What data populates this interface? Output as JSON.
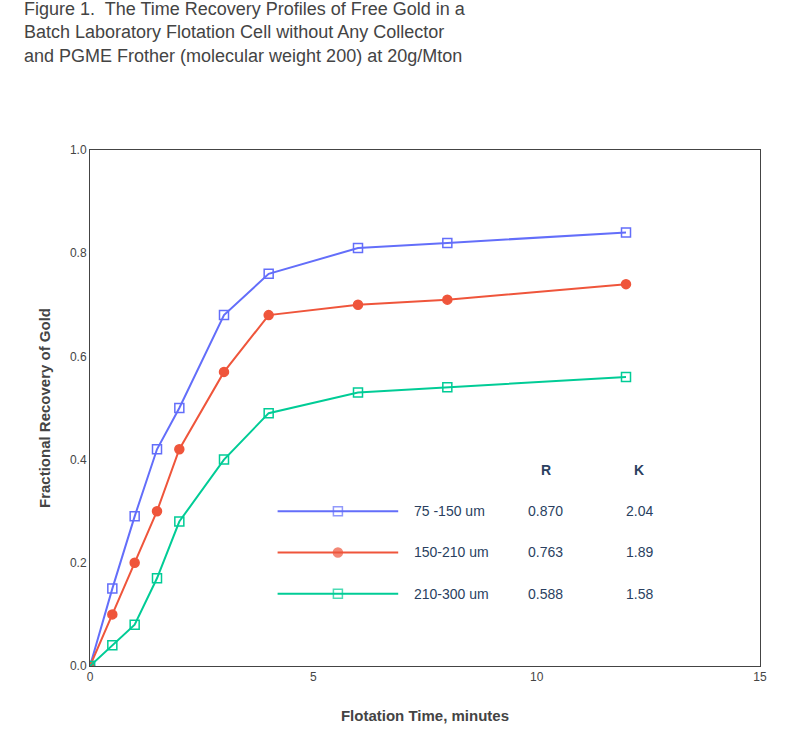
{
  "chart_data": {
    "type": "line",
    "title": [
      "Figure 1.  The Time Recovery Profiles of Free Gold in a",
      "Batch Laboratory Flotation Cell without Any Collector",
      "and PGME Frother (molecular weight 200) at 20g/Mton"
    ],
    "xlabel": "Flotation Time, minutes",
    "ylabel": "Fractional Recovery of Gold",
    "x": [
      0,
      0.5,
      1.0,
      1.5,
      2.0,
      3.0,
      4.0,
      6.0,
      8.0,
      12.0
    ],
    "series": [
      {
        "name": "75 -150 um",
        "marker": "square-open",
        "stats": [
          "0.870",
          "2.04"
        ],
        "values": [
          0.0,
          0.15,
          0.29,
          0.42,
          0.5,
          0.68,
          0.76,
          0.81,
          0.82,
          0.84
        ]
      },
      {
        "name": "150-210 um",
        "marker": "circle",
        "stats": [
          "0.763",
          "1.89"
        ],
        "values": [
          0.0,
          0.1,
          0.2,
          0.3,
          0.42,
          0.57,
          0.68,
          0.7,
          0.71,
          0.74
        ]
      },
      {
        "name": "210-300 um",
        "marker": "square-open",
        "stats": [
          "0.588",
          "1.58"
        ],
        "values": [
          0.0,
          0.04,
          0.08,
          0.17,
          0.28,
          0.4,
          0.49,
          0.53,
          0.54,
          0.56
        ]
      }
    ],
    "legend_columns": [
      "R",
      "K"
    ],
    "xlim": [
      0,
      15
    ],
    "ylim": [
      0.0,
      1.0
    ],
    "xticks": [
      0,
      5,
      10,
      15
    ],
    "yticks": [
      {
        "value": 0,
        "label": "0.0"
      },
      0.2,
      0.4,
      0.6,
      0.8,
      {
        "value": 1,
        "label": "1.0"
      }
    ],
    "grid": false,
    "legend": "lower right"
  }
}
